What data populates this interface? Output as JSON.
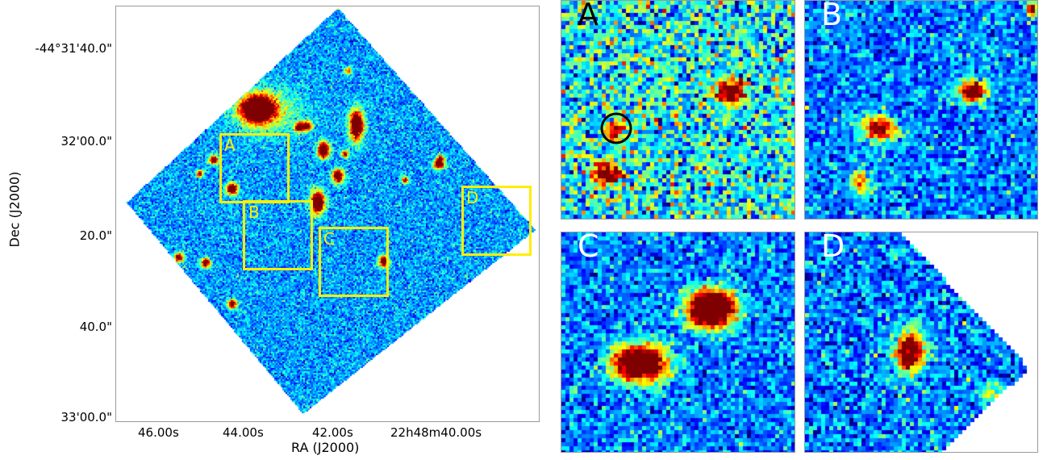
{
  "main_plot": {
    "xlabel": "RA (J2000)",
    "ylabel": "Dec (J2000)",
    "x_ticks": [
      "46.00s",
      "44.00s",
      "42.00s",
      "22h48m40.00s"
    ],
    "y_ticks": [
      "-44°31'40.0\"",
      "32'00.0\"",
      "20.0\"",
      "40.0\"",
      "33'00.0\""
    ],
    "regions": [
      "A",
      "B",
      "C",
      "D"
    ]
  },
  "zoom_panels": [
    {
      "label": "A",
      "label_color": "#000000"
    },
    {
      "label": "B",
      "label_color": "#ffffff"
    },
    {
      "label": "C",
      "label_color": "#ffffff"
    },
    {
      "label": "D",
      "label_color": "#ffffff"
    }
  ],
  "colors": {
    "region_box": "#ffee00",
    "colormap": "jet",
    "frame": "#9a9a9a"
  }
}
